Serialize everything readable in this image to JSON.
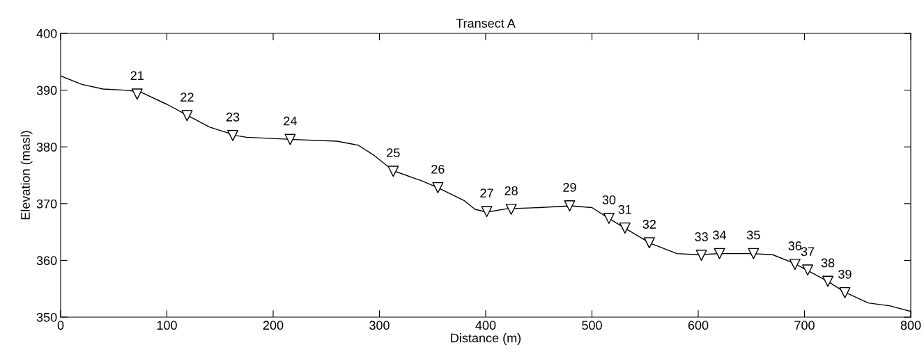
{
  "chart_data": {
    "type": "line",
    "title": "Transect A",
    "xlabel": "Distance (m)",
    "ylabel": "Elevation (masl)",
    "xlim": [
      0,
      800
    ],
    "xticks": [
      0,
      100,
      200,
      300,
      400,
      500,
      600,
      700,
      800
    ],
    "ylim": [
      350,
      400
    ],
    "yticks": [
      350,
      360,
      370,
      380,
      390,
      400
    ],
    "grid": false,
    "legend": false,
    "series": [
      {
        "color": "#000000",
        "marker": "none",
        "line_style": "solid",
        "x": [
          0,
          20,
          40,
          60,
          75,
          100,
          120,
          140,
          165,
          175,
          220,
          260,
          280,
          295,
          313,
          340,
          355,
          380,
          390,
          401,
          420,
          450,
          480,
          500,
          515,
          530,
          555,
          580,
          600,
          620,
          650,
          670,
          690,
          705,
          722,
          738,
          760,
          780,
          800
        ],
        "values": [
          392.5,
          391,
          390.2,
          390,
          389.7,
          387.5,
          385.5,
          383.5,
          382,
          381.7,
          381.3,
          381,
          380.3,
          378.5,
          375.8,
          374,
          372.8,
          370.5,
          369,
          368.5,
          369.1,
          369.3,
          369.6,
          369.3,
          367.5,
          365.8,
          363,
          361.2,
          361,
          361.2,
          361.2,
          361,
          359.5,
          358,
          356.3,
          354.4,
          352.5,
          352,
          351
        ]
      },
      {
        "type": "scatter",
        "color": "#000000",
        "marker": "triangle",
        "x": [
          72,
          119,
          162,
          216,
          313,
          355,
          401,
          424,
          479,
          516,
          531,
          554,
          603,
          620,
          652,
          691,
          703,
          722,
          738
        ],
        "values": [
          389.3,
          385.5,
          382,
          381.3,
          375.7,
          372.8,
          368.6,
          369,
          369.6,
          367.4,
          365.7,
          363.1,
          360.9,
          361.2,
          361.2,
          359.3,
          358.3,
          356.3,
          354.3
        ]
      }
    ],
    "annotations": [
      {
        "text": "21",
        "x": 72,
        "y": 389.3
      },
      {
        "text": "22",
        "x": 119,
        "y": 385.5
      },
      {
        "text": "23",
        "x": 162,
        "y": 382
      },
      {
        "text": "24",
        "x": 216,
        "y": 381.3
      },
      {
        "text": "25",
        "x": 313,
        "y": 375.7
      },
      {
        "text": "26",
        "x": 355,
        "y": 372.8
      },
      {
        "text": "27",
        "x": 401,
        "y": 368.6
      },
      {
        "text": "28",
        "x": 424,
        "y": 369
      },
      {
        "text": "29",
        "x": 479,
        "y": 369.6
      },
      {
        "text": "30",
        "x": 516,
        "y": 367.4
      },
      {
        "text": "31",
        "x": 531,
        "y": 365.7
      },
      {
        "text": "32",
        "x": 554,
        "y": 363.1
      },
      {
        "text": "33",
        "x": 603,
        "y": 360.9
      },
      {
        "text": "34",
        "x": 620,
        "y": 361.2
      },
      {
        "text": "35",
        "x": 652,
        "y": 361.2
      },
      {
        "text": "36",
        "x": 691,
        "y": 359.3
      },
      {
        "text": "37",
        "x": 703,
        "y": 358.3
      },
      {
        "text": "38",
        "x": 722,
        "y": 356.3
      },
      {
        "text": "39",
        "x": 738,
        "y": 354.3
      }
    ]
  }
}
